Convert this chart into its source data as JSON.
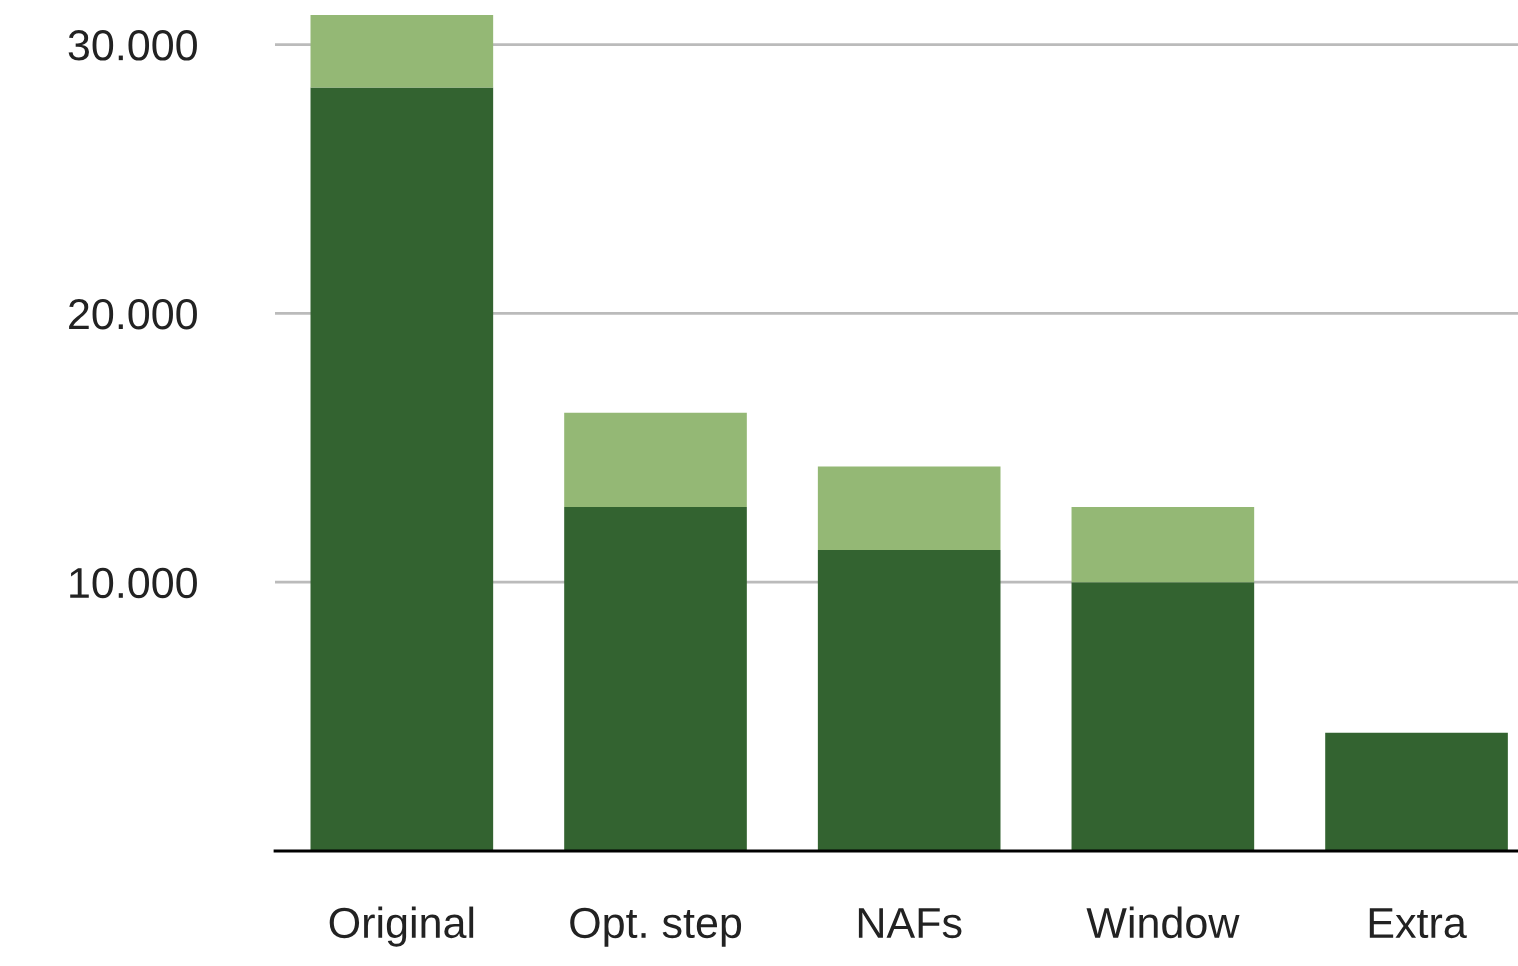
{
  "chart_data": {
    "type": "bar",
    "stacked": true,
    "categories": [
      "Original",
      "Opt. step",
      "NAFs",
      "Window",
      "Extra"
    ],
    "series": [
      {
        "color": "#336330",
        "values": [
          28400,
          12800,
          11200,
          10000,
          4400
        ]
      },
      {
        "color": "#94b875",
        "values": [
          2700,
          3500,
          3100,
          2800,
          null
        ]
      }
    ],
    "ylim": [
      0,
      31100
    ],
    "yticks": [
      {
        "value": 10000,
        "label": "10.000"
      },
      {
        "value": 20000,
        "label": "20.000"
      },
      {
        "value": 30000,
        "label": "30.000"
      }
    ],
    "grid": "y",
    "legend": false
  }
}
